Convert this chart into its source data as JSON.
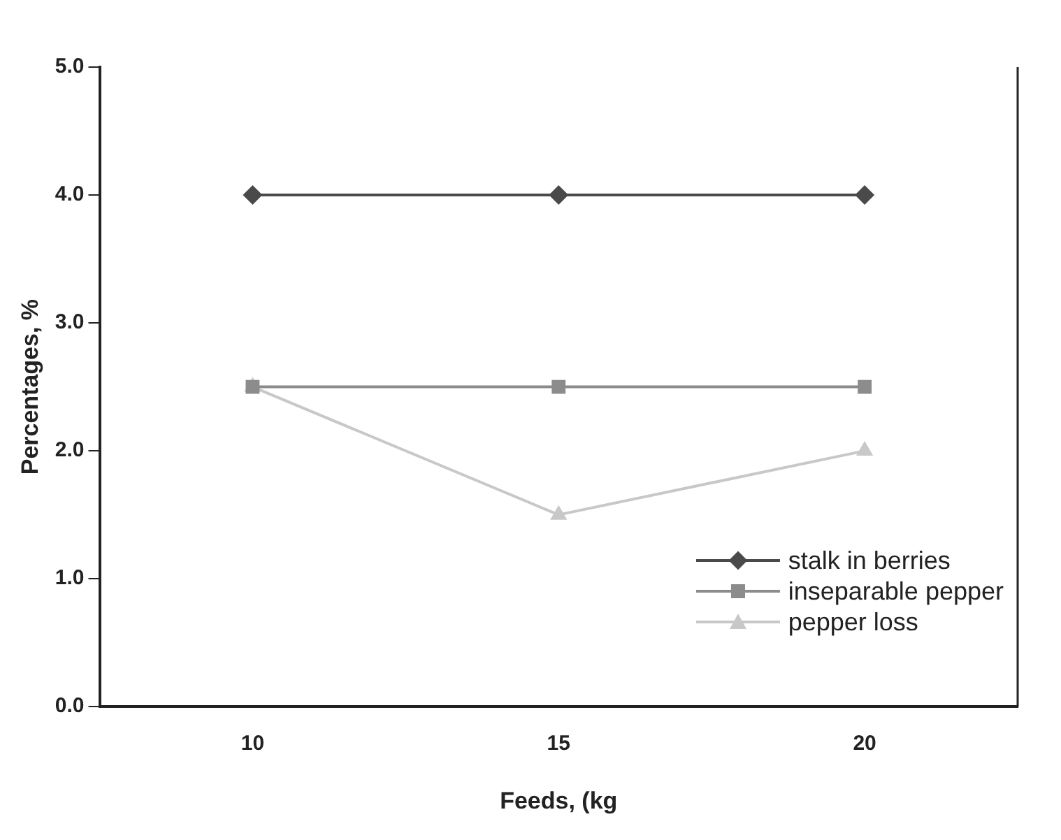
{
  "chart_data": {
    "type": "line",
    "xlabel": "Feeds, (kg",
    "ylabel": "Percentages, %",
    "categories": [
      "10",
      "15",
      "20"
    ],
    "series": [
      {
        "name": "stalk in berries",
        "color": "#4a4a4a",
        "marker": "diamond",
        "values": [
          4.0,
          4.0,
          4.0
        ]
      },
      {
        "name": "inseparable pepper",
        "color": "#8c8c8c",
        "marker": "square",
        "values": [
          2.5,
          2.5,
          2.5
        ]
      },
      {
        "name": "pepper loss",
        "color": "#c8c8c8",
        "marker": "triangle",
        "values": [
          2.5,
          1.5,
          2.0
        ]
      }
    ],
    "ylim": [
      0,
      5
    ],
    "yticks": [
      {
        "value": 0,
        "label": "0.0"
      },
      {
        "value": 1,
        "label": "1.0"
      },
      {
        "value": 2,
        "label": "2.0"
      },
      {
        "value": 3,
        "label": "3.0"
      },
      {
        "value": 4,
        "label": "4.0"
      },
      {
        "value": 5,
        "label": "5.0"
      }
    ],
    "grid": false,
    "legend": "bottom right",
    "line_style": "solid"
  }
}
